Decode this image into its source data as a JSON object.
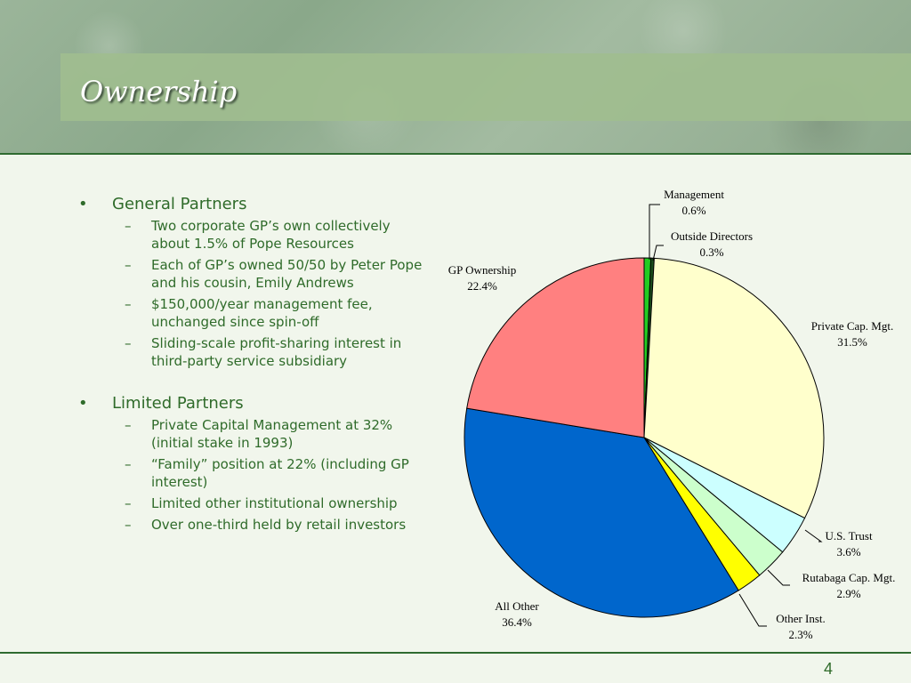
{
  "slide": {
    "title": "Ownership",
    "page_number": "4"
  },
  "bullets": [
    {
      "text": "General Partners",
      "subs": [
        "Two corporate GP’s own collectively about 1.5% of Pope Resources",
        "Each of GP’s owned 50/50 by Peter Pope and his cousin, Emily Andrews",
        "$150,000/year management fee, unchanged since spin-off",
        "Sliding-scale profit-sharing interest in third-party service subsidiary"
      ]
    },
    {
      "text": "Limited Partners",
      "subs": [
        "Private Capital Management at 32% (initial stake in 1993)",
        "“Family” position at 22% (including GP interest)",
        "Limited other institutional ownership",
        "Over one-third held by retail investors"
      ]
    }
  ],
  "chart_data": {
    "type": "pie",
    "title": "",
    "slices": [
      {
        "label": "Management",
        "value": 0.6,
        "display": "0.6%",
        "color": "#22cc22"
      },
      {
        "label": "Outside Directors",
        "value": 0.3,
        "display": "0.3%",
        "color": "#1a4d1a"
      },
      {
        "label": "Private Cap. Mgt.",
        "value": 31.5,
        "display": "31.5%",
        "color": "#ffffcc"
      },
      {
        "label": "U.S. Trust",
        "value": 3.6,
        "display": "3.6%",
        "color": "#ccffff"
      },
      {
        "label": "Rutabaga Cap. Mgt.",
        "value": 2.9,
        "display": "2.9%",
        "color": "#ccffcc"
      },
      {
        "label": "Other Inst.",
        "value": 2.3,
        "display": "2.3%",
        "color": "#ffff00"
      },
      {
        "label": "All Other",
        "value": 36.4,
        "display": "36.4%",
        "color": "#0066cc"
      },
      {
        "label": "GP Ownership",
        "value": 22.4,
        "display": "22.4%",
        "color": "#ff8080"
      }
    ]
  }
}
